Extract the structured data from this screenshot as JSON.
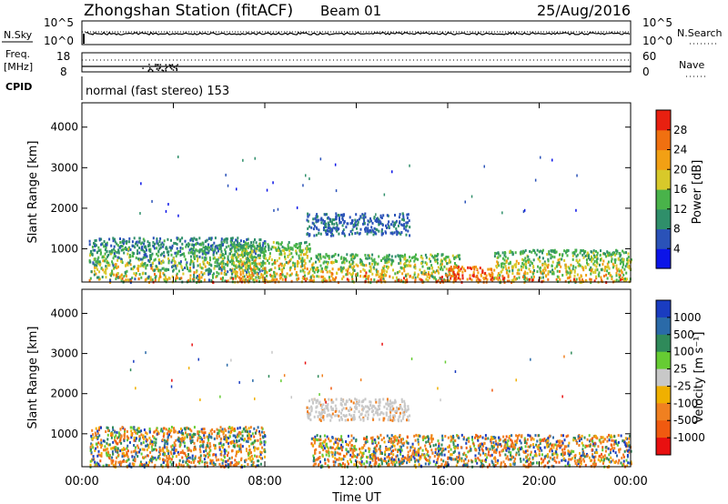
{
  "header": {
    "station": "Zhongshan Station (fitACF)",
    "beam": "Beam 01",
    "date": "25/Aug/2016"
  },
  "top_panels": {
    "nsky_label": "N.Sky",
    "nsky_ticks": [
      "10^5",
      "10^0"
    ],
    "nsearch_label": "N.Search",
    "nsearch_ticks": [
      "10^5",
      "10^0"
    ],
    "freq_label_1": "Freq.",
    "freq_label_2": "[MHz]",
    "freq_ticks": [
      "18",
      "8"
    ],
    "nave_label": "Nave",
    "nave_ticks": [
      "60",
      "0"
    ],
    "cpid_label": "CPID",
    "cpid_text": "normal (fast stereo) 153"
  },
  "chart_data": [
    {
      "type": "heatmap",
      "quantity": "Power",
      "ylabel": "Slant Range [km]",
      "ylim": [
        180,
        4600
      ],
      "y_ticks": [
        "1000",
        "2000",
        "3000",
        "4000"
      ],
      "colorbar_label": "Power [dB]",
      "colorbar_ticks": [
        "4",
        "8",
        "12",
        "16",
        "20",
        "24",
        "28"
      ],
      "colorbar_colors": [
        "#0b14e8",
        "#2a52b8",
        "#2f8f6a",
        "#49b34a",
        "#d8c92a",
        "#f2a014",
        "#f07010",
        "#e82010"
      ],
      "regions": [
        {
          "t0": 0.3,
          "t1": 8.0,
          "r0": 200,
          "r1": 1300,
          "level": "mixed-low"
        },
        {
          "t0": 6.5,
          "t1": 10.0,
          "r0": 200,
          "r1": 1200,
          "level": "mixed-high"
        },
        {
          "t0": 9.8,
          "t1": 14.3,
          "r0": 1350,
          "r1": 1900,
          "level": "low"
        },
        {
          "t0": 10.0,
          "t1": 16.5,
          "r0": 200,
          "r1": 900,
          "level": "mixed-high"
        },
        {
          "t0": 16.0,
          "t1": 18.0,
          "r0": 200,
          "r1": 600,
          "level": "high"
        },
        {
          "t0": 18.0,
          "t1": 24.0,
          "r0": 200,
          "r1": 1000,
          "level": "mixed-high"
        }
      ]
    },
    {
      "type": "heatmap",
      "quantity": "Velocity",
      "ylabel": "Slant Range [km]",
      "ylim": [
        180,
        4600
      ],
      "y_ticks": [
        "1000",
        "2000",
        "3000",
        "4000"
      ],
      "colorbar_label": "Velocity [m s⁻¹]",
      "colorbar_ticks": [
        "1000",
        "500",
        "100",
        "25",
        "-25",
        "-100",
        "-500",
        "-1000"
      ],
      "colorbar_colors": [
        "#1a3cc0",
        "#2a6aa8",
        "#2f8a5a",
        "#66cc33",
        "#c8c8c8",
        "#f0b000",
        "#f08020",
        "#f05a10",
        "#e81010"
      ],
      "regions": [
        {
          "t0": 0.3,
          "t1": 8.0,
          "r0": 200,
          "r1": 1200,
          "level": "mixed"
        },
        {
          "t0": 9.8,
          "t1": 14.3,
          "r0": 1350,
          "r1": 1900,
          "level": "ground-scatter"
        },
        {
          "t0": 10.0,
          "t1": 24.0,
          "r0": 200,
          "r1": 1000,
          "level": "mixed"
        }
      ]
    }
  ],
  "x_axis": {
    "ticks": [
      "00:00",
      "04:00",
      "08:00",
      "12:00",
      "16:00",
      "20:00",
      "00:00"
    ],
    "label": "Time UT"
  }
}
